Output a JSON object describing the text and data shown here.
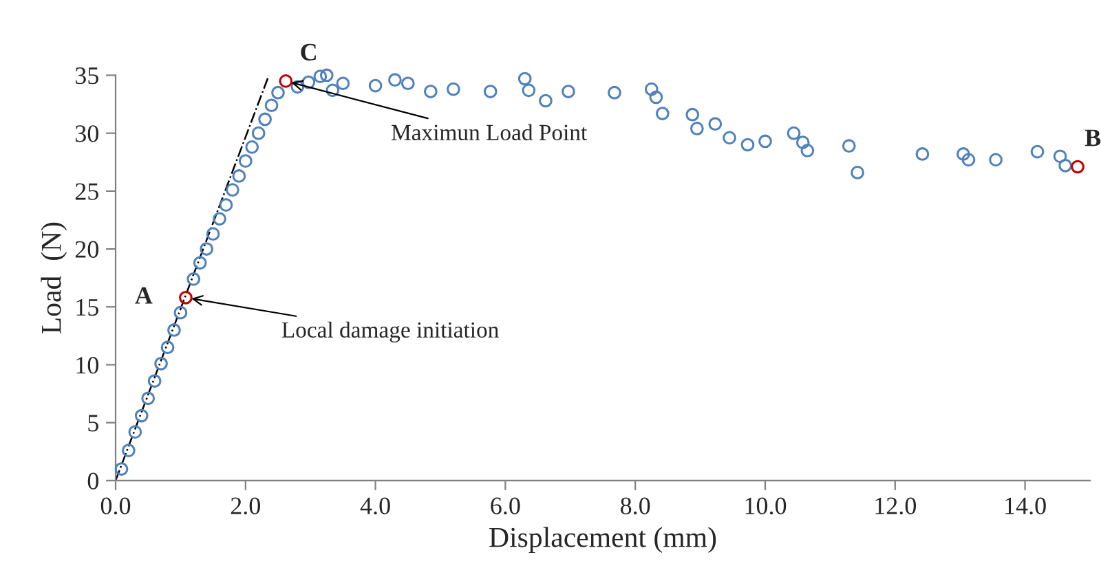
{
  "chart_data": {
    "type": "scatter",
    "xlabel": "Displacement (mm)",
    "ylabel": "Load  (N)",
    "xlim": [
      0,
      15
    ],
    "ylim": [
      0,
      35
    ],
    "xticks": [
      {
        "value": 0,
        "label": "0.0"
      },
      {
        "value": 2,
        "label": "2.0"
      },
      {
        "value": 4,
        "label": "4.0"
      },
      {
        "value": 6,
        "label": "6.0"
      },
      {
        "value": 8,
        "label": "8.0"
      },
      {
        "value": 10,
        "label": "10.0"
      },
      {
        "value": 12,
        "label": "12.0"
      },
      {
        "value": 14,
        "label": "14.0"
      }
    ],
    "yticks": [
      0,
      5,
      10,
      15,
      20,
      25,
      30,
      35
    ],
    "grid": false,
    "legend": false,
    "marker": "circle",
    "series": [
      {
        "type": "line",
        "color": "#000000",
        "line_style": "dashed",
        "marker": "none",
        "x": [
          0,
          2.36
        ],
        "values": [
          0,
          35
        ]
      },
      {
        "color": "#4f81bd",
        "x": [
          0.09,
          0.2,
          0.3,
          0.4,
          0.5,
          0.6,
          0.7,
          0.8,
          0.9,
          1.0,
          1.2,
          1.3,
          1.4,
          1.5,
          1.6,
          1.7,
          1.8,
          1.9,
          2.0,
          2.1,
          2.2,
          2.3,
          2.4,
          2.5,
          2.8,
          2.97,
          3.15,
          3.25,
          3.34,
          3.5,
          4.0,
          4.3,
          4.5,
          4.85,
          5.2,
          5.77,
          6.3,
          6.36,
          6.62,
          6.97,
          7.68,
          8.25,
          8.32,
          8.42,
          8.88,
          8.95,
          9.23,
          9.45,
          9.73,
          10.0,
          10.44,
          10.58,
          10.65,
          11.29,
          11.42,
          12.42,
          13.05,
          13.13,
          13.55,
          14.19,
          14.54,
          14.62
        ],
        "values": [
          1.0,
          2.6,
          4.2,
          5.6,
          7.1,
          8.6,
          10.1,
          11.5,
          13.0,
          14.5,
          17.4,
          18.8,
          20.0,
          21.3,
          22.6,
          23.8,
          25.1,
          26.3,
          27.6,
          28.8,
          30.0,
          31.2,
          32.4,
          33.5,
          34.0,
          34.4,
          34.9,
          35.0,
          33.7,
          34.3,
          34.1,
          34.6,
          34.3,
          33.6,
          33.8,
          33.6,
          34.7,
          33.7,
          32.8,
          33.6,
          33.5,
          33.8,
          33.1,
          31.7,
          31.6,
          30.4,
          30.8,
          29.6,
          29.0,
          29.3,
          30.0,
          29.2,
          28.5,
          28.9,
          26.6,
          28.2,
          28.2,
          27.7,
          27.7,
          28.4,
          28.0,
          27.2
        ]
      },
      {
        "color": "#c00000",
        "x": [
          1.08,
          2.62,
          14.81
        ],
        "values": [
          15.8,
          34.5,
          27.1
        ]
      }
    ],
    "annotations": [
      {
        "text": "A",
        "x": 1.08,
        "y": 15.8
      },
      {
        "text": "C",
        "x": 2.62,
        "y": 34.5
      },
      {
        "text": "B",
        "x": 14.81,
        "y": 27.1
      },
      {
        "text": "Local damage initiation",
        "x": 1.08,
        "y": 15.8
      },
      {
        "text": "Maximun Load Point",
        "x": 2.62,
        "y": 34.5
      }
    ]
  }
}
